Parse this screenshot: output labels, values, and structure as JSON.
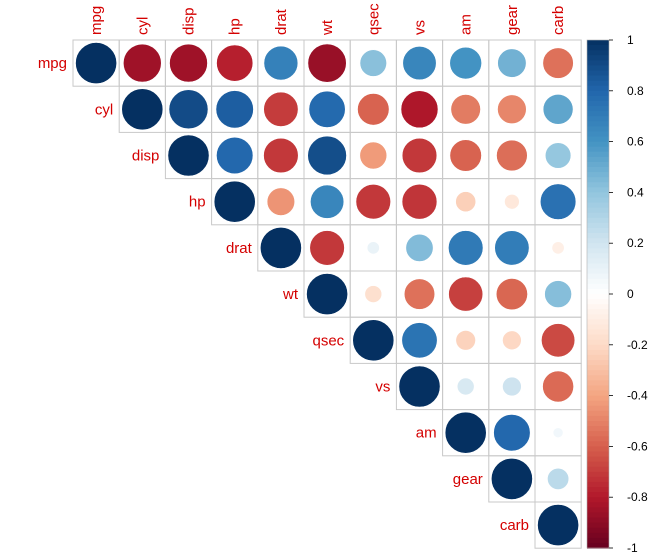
{
  "chart_data": {
    "type": "heatmap",
    "style": "correlation-circles-upper-triangle",
    "variables": [
      "mpg",
      "cyl",
      "disp",
      "hp",
      "drat",
      "wt",
      "qsec",
      "vs",
      "am",
      "gear",
      "carb"
    ],
    "values": [
      [
        1.0,
        -0.85,
        -0.85,
        -0.78,
        0.68,
        -0.87,
        0.42,
        0.66,
        0.6,
        0.48,
        -0.55
      ],
      [
        -0.85,
        1.0,
        0.9,
        0.83,
        -0.7,
        0.78,
        -0.59,
        -0.81,
        -0.52,
        -0.49,
        0.53
      ],
      [
        -0.85,
        0.9,
        1.0,
        0.79,
        -0.71,
        0.89,
        -0.43,
        -0.71,
        -0.59,
        -0.56,
        0.39
      ],
      [
        -0.78,
        0.83,
        0.79,
        1.0,
        -0.45,
        0.66,
        -0.71,
        -0.72,
        -0.24,
        -0.13,
        0.75
      ],
      [
        0.68,
        -0.7,
        -0.71,
        -0.45,
        1.0,
        -0.71,
        0.09,
        0.44,
        0.71,
        0.7,
        -0.09
      ],
      [
        -0.87,
        0.78,
        0.89,
        0.66,
        -0.71,
        1.0,
        -0.17,
        -0.55,
        -0.69,
        -0.58,
        0.43
      ],
      [
        0.42,
        -0.59,
        -0.43,
        -0.71,
        0.09,
        -0.17,
        1.0,
        0.74,
        -0.23,
        -0.21,
        -0.66
      ],
      [
        0.66,
        -0.81,
        -0.71,
        -0.72,
        0.44,
        -0.55,
        0.74,
        1.0,
        0.17,
        0.21,
        -0.57
      ],
      [
        0.6,
        -0.52,
        -0.59,
        -0.24,
        0.71,
        -0.69,
        -0.23,
        0.17,
        1.0,
        0.79,
        0.06
      ],
      [
        0.48,
        -0.49,
        -0.56,
        -0.13,
        0.7,
        -0.58,
        -0.21,
        0.21,
        0.79,
        1.0,
        0.27
      ],
      [
        -0.55,
        0.53,
        0.39,
        0.75,
        -0.09,
        0.43,
        -0.66,
        -0.57,
        0.06,
        0.27,
        1.0
      ]
    ],
    "colorbar": {
      "range": [
        -1,
        1
      ],
      "ticks": [
        "1",
        "0.8",
        "0.6",
        "0.4",
        "0.2",
        "0",
        "-0.2",
        "-0.4",
        "-0.6",
        "-0.8",
        "-1"
      ]
    },
    "color_scale": {
      "negative_end": "#67001f",
      "neutral": "#ffffff",
      "positive_end": "#053061"
    },
    "label_color": "#d40000",
    "grid": true
  }
}
